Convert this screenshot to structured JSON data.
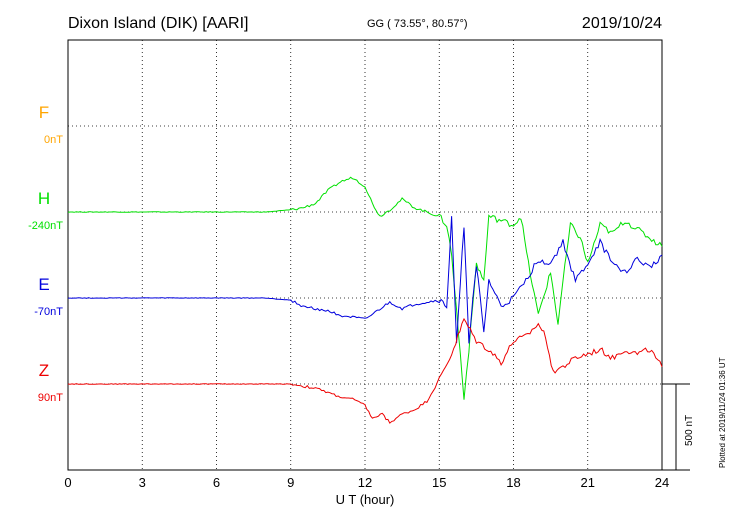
{
  "header": {
    "station": "Dixon Island (DIK)  [AARI]",
    "coords": "GG ( 73.55°,  80.57°)",
    "date": "2019/10/24"
  },
  "footer": {
    "plotted": "Plotted at 2019/11/24 01:36 UT",
    "scale_label": "500 nT"
  },
  "chart_data": {
    "type": "line",
    "title": "Dixon Island (DIK)  [AARI]",
    "xlabel": "U T (hour)",
    "ylabel": "",
    "xlim": [
      0,
      24
    ],
    "x_ticks": [
      "0",
      "3",
      "6",
      "9",
      "12",
      "15",
      "18",
      "21",
      "24"
    ],
    "ylim": [
      -1000,
      0
    ],
    "y_unit": "nT (each trace offset around its baseline; scale bar = 500 nT)",
    "grid": true,
    "series": [
      {
        "name": "F",
        "label": "F",
        "baseline_label": "0nT",
        "color": "#ffa500",
        "baseline": -200,
        "x": [],
        "values": []
      },
      {
        "name": "H",
        "label": "H",
        "baseline_label": "-240nT",
        "color": "#00e000",
        "baseline": -400,
        "x": [
          0,
          3,
          6,
          8,
          9,
          9.5,
          10,
          10.5,
          11,
          11.5,
          12,
          12.3,
          12.6,
          13,
          13.5,
          14,
          14.5,
          15,
          15.3,
          15.5,
          15.7,
          16,
          16.2,
          16.5,
          16.8,
          17,
          17.5,
          18,
          18.3,
          18.6,
          19,
          19.2,
          19.5,
          19.8,
          20,
          20.3,
          20.7,
          21,
          21.5,
          22,
          22.5,
          23,
          23.5,
          24
        ],
        "values": [
          -400,
          -400,
          -400,
          -400,
          -395,
          -390,
          -380,
          -350,
          -330,
          -320,
          -340,
          -380,
          -410,
          -395,
          -370,
          -390,
          -400,
          -410,
          -430,
          -500,
          -630,
          -830,
          -720,
          -520,
          -560,
          -410,
          -420,
          -430,
          -410,
          -520,
          -640,
          -600,
          -540,
          -660,
          -560,
          -430,
          -460,
          -520,
          -430,
          -450,
          -420,
          -440,
          -460,
          -480
        ]
      },
      {
        "name": "E",
        "label": "E",
        "baseline_label": "-70nT",
        "color": "#0000dd",
        "baseline": -600,
        "x": [
          0,
          3,
          6,
          8,
          9,
          9.5,
          10,
          10.5,
          11,
          11.5,
          12,
          12.5,
          13,
          13.5,
          14,
          14.5,
          15,
          15.3,
          15.5,
          15.7,
          16,
          16.2,
          16.5,
          16.8,
          17,
          17.5,
          18,
          18.5,
          19,
          19.5,
          20,
          20.5,
          21,
          21.5,
          22,
          22.5,
          23,
          23.5,
          24
        ],
        "values": [
          -600,
          -600,
          -600,
          -600,
          -605,
          -620,
          -625,
          -630,
          -640,
          -645,
          -650,
          -630,
          -610,
          -625,
          -615,
          -610,
          -605,
          -620,
          -410,
          -710,
          -430,
          -700,
          -520,
          -680,
          -560,
          -620,
          -600,
          -560,
          -510,
          -520,
          -470,
          -560,
          -520,
          -470,
          -520,
          -540,
          -510,
          -530,
          -500
        ]
      },
      {
        "name": "Z",
        "label": "Z",
        "baseline_label": "90nT",
        "color": "#ee0000",
        "baseline": -800,
        "x": [
          0,
          3,
          6,
          8,
          9,
          10,
          11,
          11.5,
          12,
          12.3,
          12.7,
          13,
          13.5,
          14,
          14.5,
          15,
          15.5,
          16,
          16.5,
          17,
          17.5,
          18,
          18.5,
          19,
          19.3,
          19.6,
          20,
          20.5,
          21,
          21.5,
          22,
          22.5,
          23,
          23.5,
          24
        ],
        "values": [
          -800,
          -800,
          -800,
          -800,
          -800,
          -810,
          -830,
          -835,
          -850,
          -880,
          -870,
          -890,
          -870,
          -860,
          -840,
          -790,
          -730,
          -650,
          -700,
          -720,
          -750,
          -700,
          -690,
          -660,
          -690,
          -770,
          -760,
          -740,
          -730,
          -720,
          -740,
          -720,
          -730,
          -720,
          -760
        ]
      }
    ]
  }
}
